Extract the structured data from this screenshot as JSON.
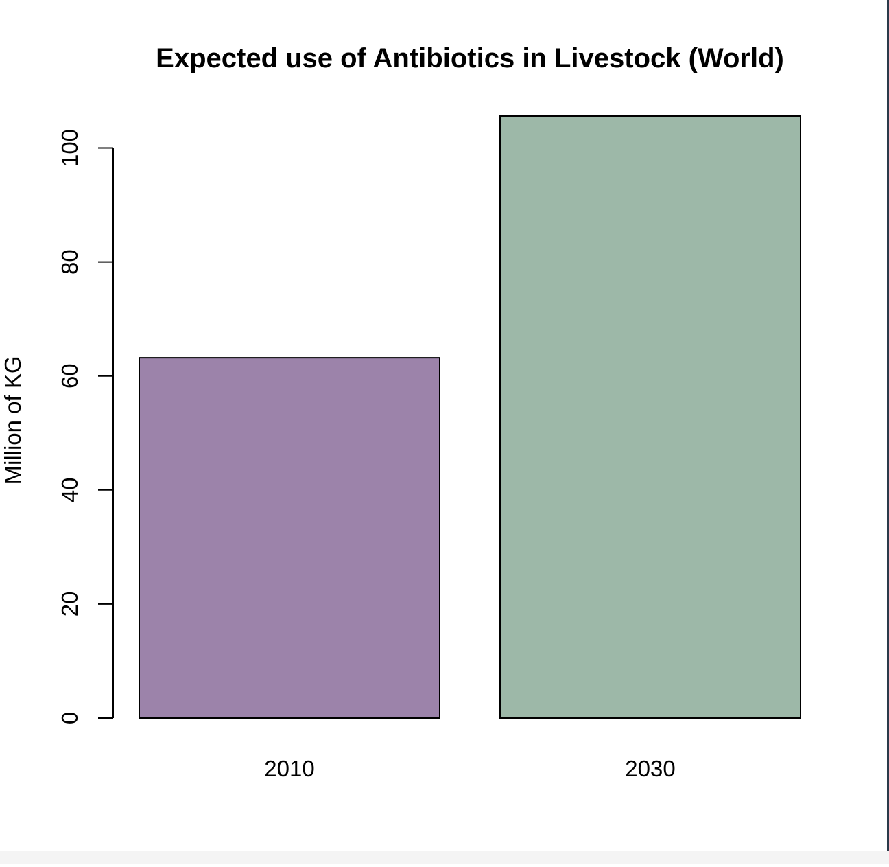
{
  "chart_data": {
    "type": "bar",
    "title": "Expected use of Antibiotics in Livestock (World)",
    "xlabel": "",
    "ylabel": "Million of KG",
    "categories": [
      "2010",
      "2030"
    ],
    "values": [
      63.2,
      105.6
    ],
    "colors": [
      "#9c83aa",
      "#9db8a8"
    ],
    "bar_edge_color": "#000000",
    "yticks": [
      0,
      20,
      40,
      60,
      80,
      100
    ],
    "ylim": [
      0,
      105.6
    ],
    "grid": false,
    "legend": "none"
  }
}
